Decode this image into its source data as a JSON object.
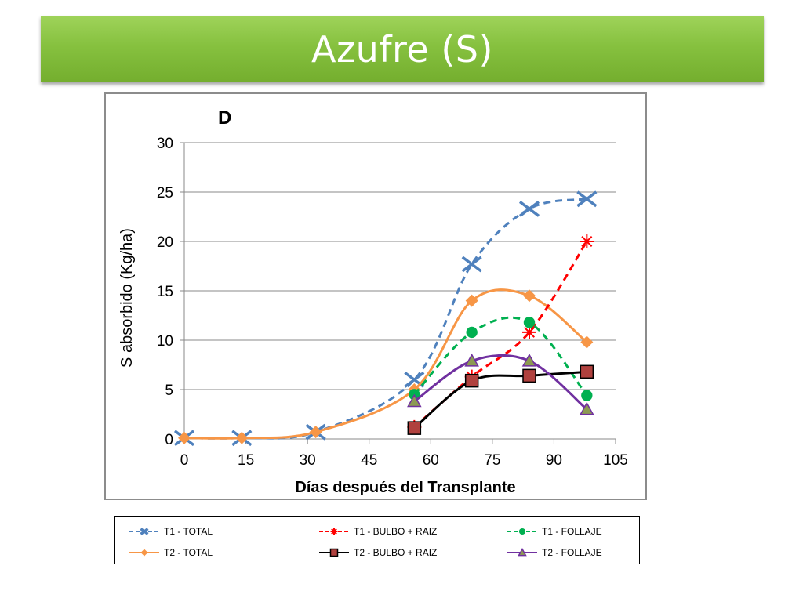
{
  "slide": {
    "title": "Azufre (S)"
  },
  "chart_data": {
    "type": "line",
    "panel_label": "D",
    "title": "",
    "xlabel": "Días después del Transplante",
    "ylabel": "S absorbido (Kg/ha)",
    "xlim": [
      0,
      105
    ],
    "ylim": [
      0,
      30
    ],
    "x_ticks": [
      0,
      15,
      30,
      45,
      60,
      75,
      90,
      105
    ],
    "y_ticks": [
      0,
      5,
      10,
      15,
      20,
      25,
      30
    ],
    "grid": "horizontal",
    "legend_position": "bottom",
    "series": [
      {
        "name": "T1 - TOTAL",
        "color": "#4f81bd",
        "dash": "dashed",
        "marker": "x",
        "x": [
          0,
          14,
          32,
          56,
          70,
          84,
          98
        ],
        "y": [
          0.1,
          0.1,
          0.7,
          6.0,
          17.7,
          23.3,
          24.3
        ]
      },
      {
        "name": "T1 - BULBO + RAIZ",
        "color": "#ff0000",
        "dash": "dashed",
        "marker": "star",
        "x": [
          56,
          70,
          84,
          98
        ],
        "y": [
          1.2,
          6.3,
          10.8,
          20.0
        ]
      },
      {
        "name": "T1 - FOLLAJE",
        "color": "#00b050",
        "dash": "dashed",
        "marker": "circle",
        "x": [
          56,
          70,
          84,
          98
        ],
        "y": [
          4.5,
          10.8,
          11.8,
          4.4
        ]
      },
      {
        "name": "T2 - TOTAL",
        "color": "#f79646",
        "dash": "solid",
        "marker": "diamond",
        "x": [
          0,
          14,
          32,
          56,
          70,
          84,
          98
        ],
        "y": [
          0.1,
          0.1,
          0.7,
          5.0,
          14.0,
          14.5,
          9.8
        ]
      },
      {
        "name": "T2 - BULBO + RAIZ",
        "color": "#000000",
        "dash": "solid",
        "marker": "square",
        "x": [
          56,
          70,
          84,
          98
        ],
        "y": [
          1.1,
          5.9,
          6.4,
          6.8
        ]
      },
      {
        "name": "T2 - FOLLAJE",
        "color": "#7030a0",
        "dash": "solid",
        "marker": "triangle",
        "x": [
          56,
          70,
          84,
          98
        ],
        "y": [
          3.8,
          7.9,
          7.9,
          3.0
        ]
      }
    ]
  }
}
